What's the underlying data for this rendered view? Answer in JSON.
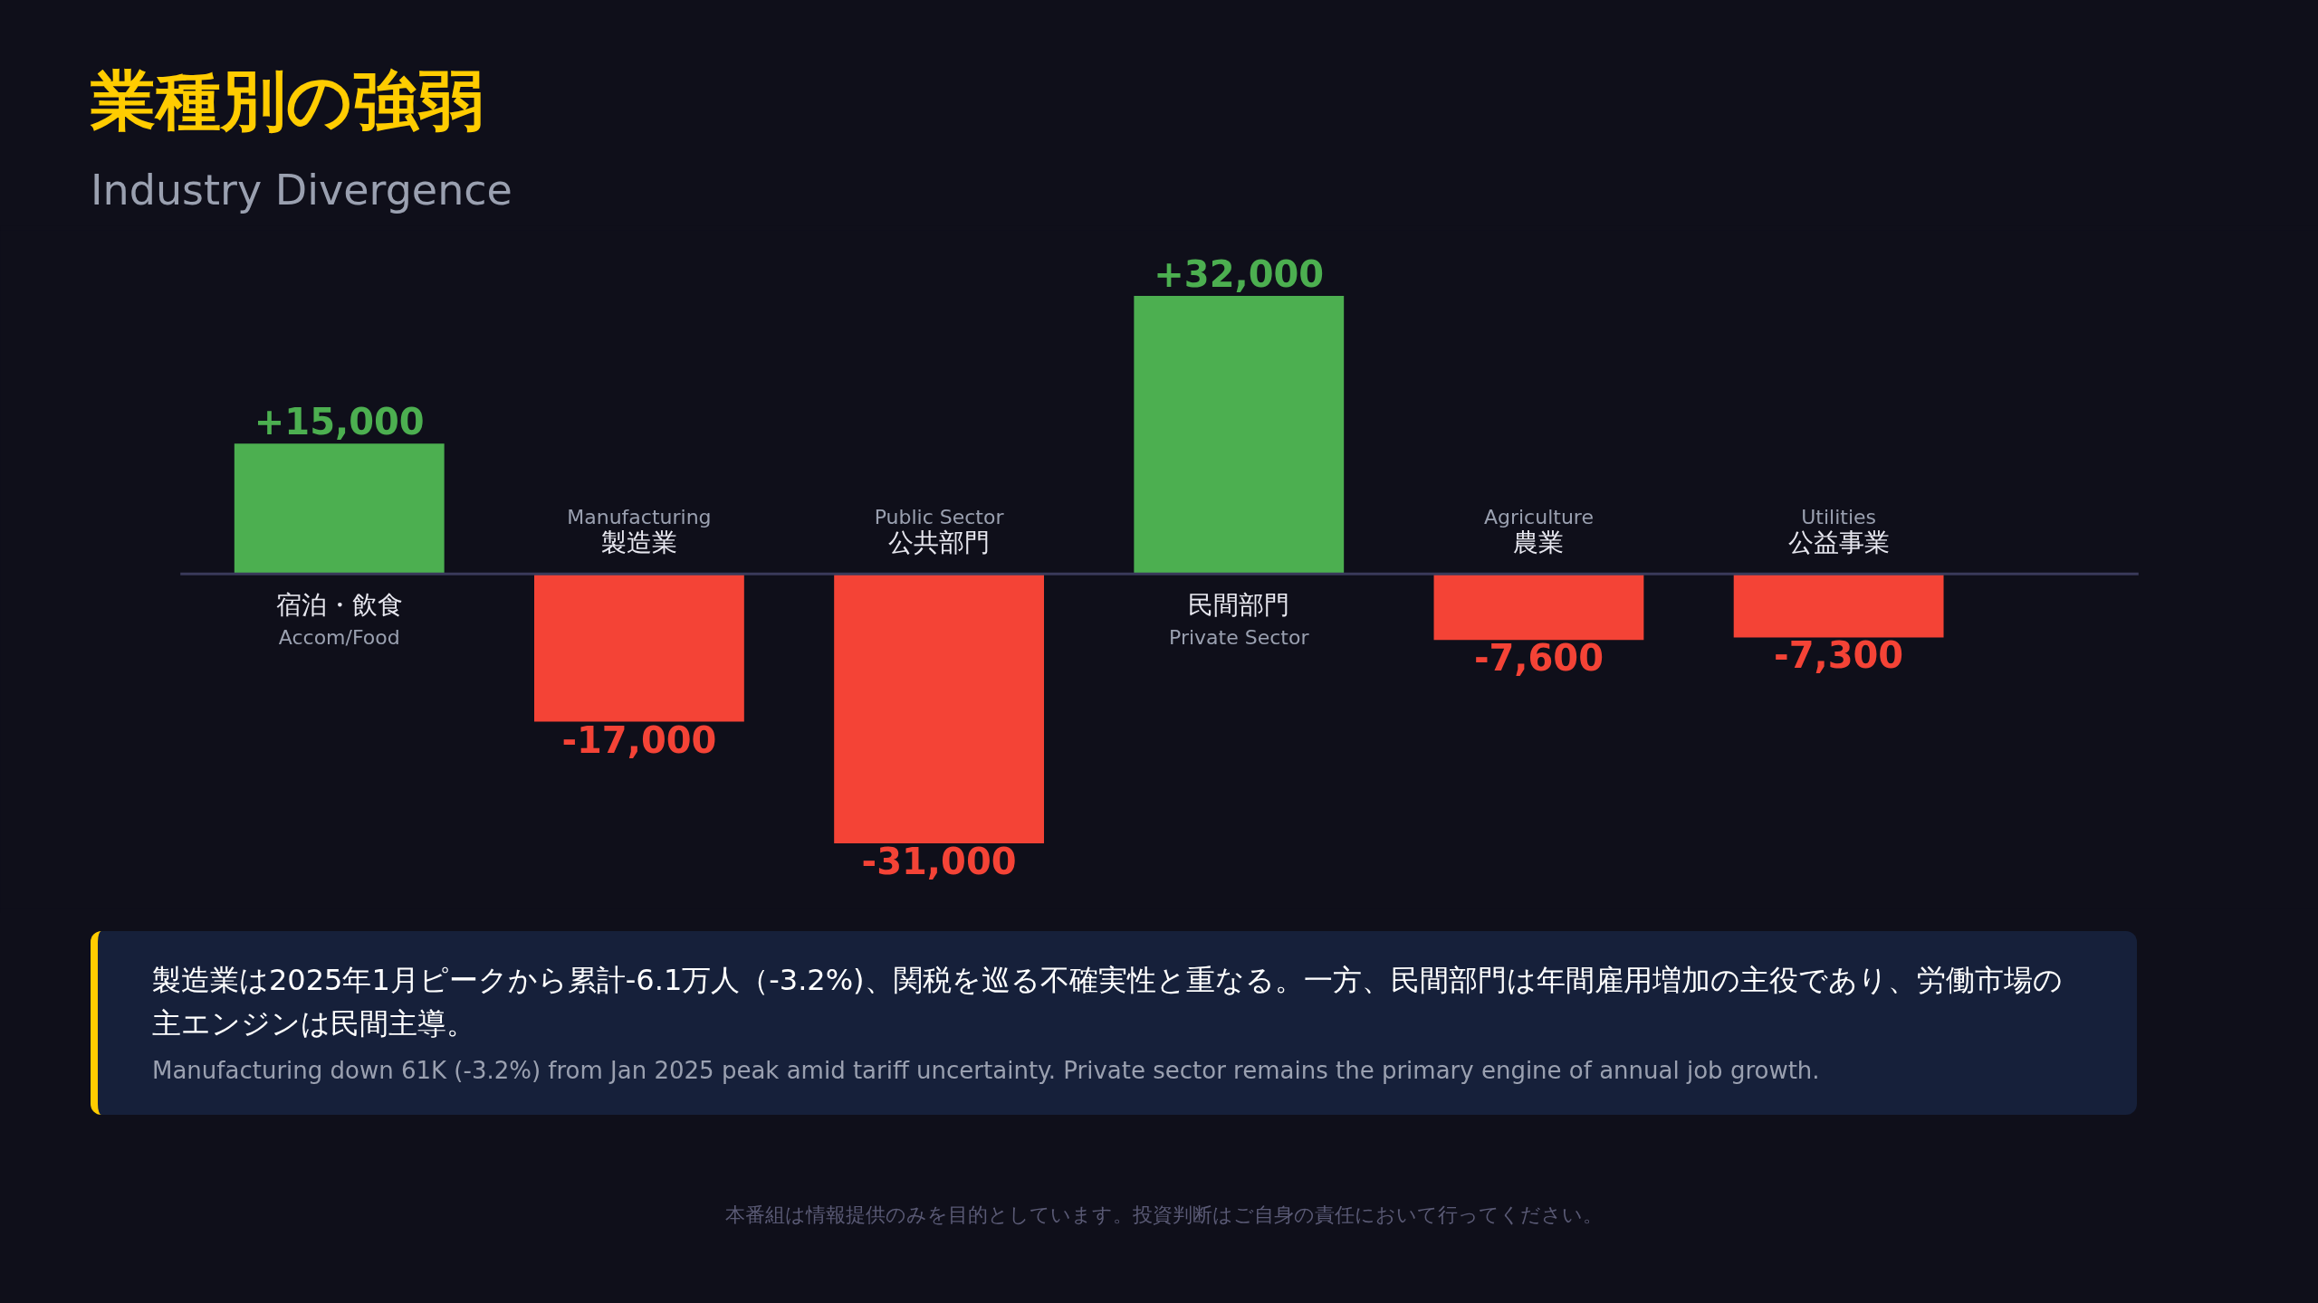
{
  "chart_data": {
    "type": "bar",
    "title": "業種別の強弱",
    "subtitle": "Industry Divergence",
    "categories": [
      "宿泊・飲食\nAccom/Food",
      "Manufacturing\n製造業",
      "Public Sector\n公共部門",
      "民間部門\nPrivate Sector",
      "Agriculture\n農業",
      "Utilities\n公益事業"
    ],
    "values": [
      15000,
      -17000,
      -31000,
      32000,
      -7600,
      -7300
    ],
    "colors": [
      "#4caf50",
      "#f44336",
      "#f44336",
      "#4caf50",
      "#f44336",
      "#f44336"
    ],
    "value_labels": [
      "+15,000",
      "-17,000",
      "-31,000",
      "+32,000",
      "-7,600",
      "-7,300"
    ],
    "grid": false,
    "annotations": [
      "製造業は2025年1月ピークから累計-6.1万人（-3.2%)、関税を巡る不確実性と重なる。一方、民間部門は年間雇用増加の主役であり、労働市場の主エンジンは民間主導。",
      "Manufacturing down 61K (-3.2%) from Jan 2025 peak amid tariff uncertainty. Private sector remains the primary engine of annual job growth.",
      "本番組は情報提供のみを目的としています。投資判断はご自身の責任において行ってください。"
    ]
  }
}
